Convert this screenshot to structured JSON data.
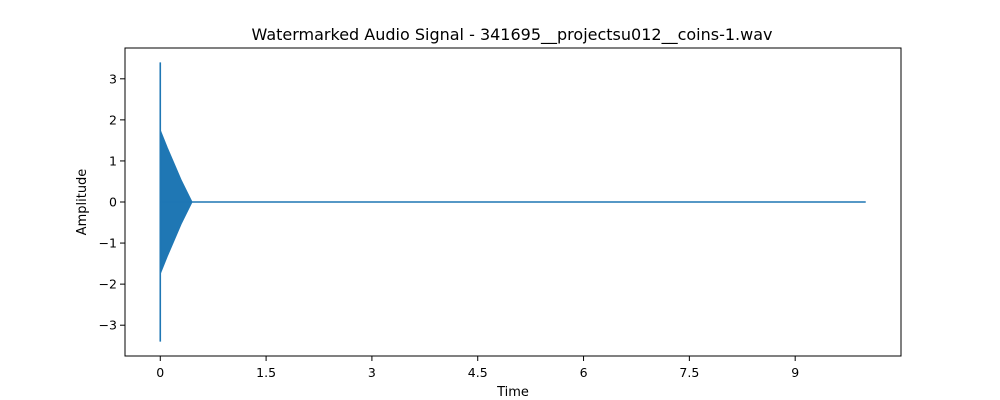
{
  "chart_data": {
    "type": "line",
    "title": "Watermarked Audio Signal - 341695__projectsu012__coins-1.wav",
    "xlabel": "Time",
    "ylabel": "Amplitude",
    "xlim": [
      -0.5,
      10.5
    ],
    "ylim": [
      -3.75,
      3.75
    ],
    "xticks": [
      0,
      1.5,
      3,
      4.5,
      6,
      7.5,
      9
    ],
    "xtick_labels": [
      "0",
      "1.5",
      "3",
      "4.5",
      "6",
      "7.5",
      "9"
    ],
    "yticks": [
      3,
      2,
      1,
      0,
      -1,
      -2,
      -3
    ],
    "ytick_labels": [
      "3",
      "2",
      "1",
      "0",
      "−1",
      "−2",
      "−3"
    ],
    "grid": false,
    "line_color": "#1f77b4",
    "series": [
      {
        "x_start": 0.0,
        "x_end": 10.0,
        "spike": {
          "x": 0.0,
          "min": -3.4,
          "max": 3.4
        },
        "envelope": [
          {
            "x": 0.0,
            "amp": 1.75
          },
          {
            "x": 0.1,
            "amp": 1.32
          },
          {
            "x": 0.2,
            "amp": 0.92
          },
          {
            "x": 0.3,
            "amp": 0.52
          },
          {
            "x": 0.45,
            "amp": 0.0
          }
        ]
      }
    ]
  }
}
